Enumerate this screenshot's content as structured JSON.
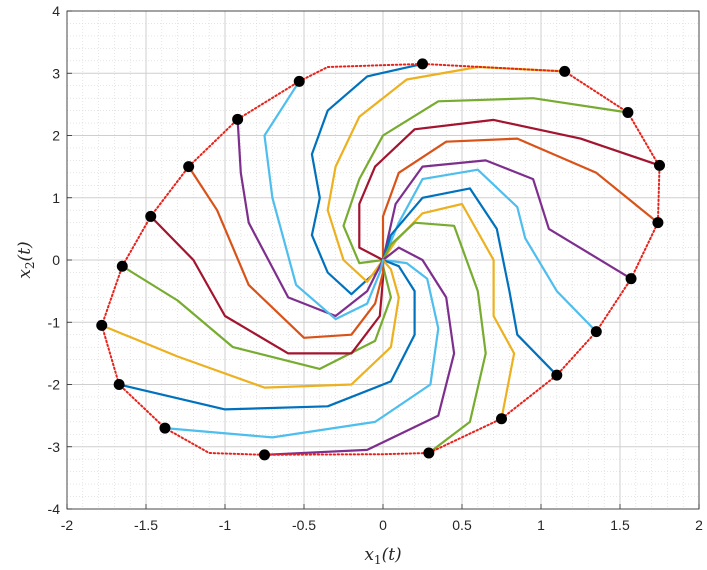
{
  "chart_data": {
    "type": "line",
    "title": "",
    "xlabel": "x_1(t)",
    "ylabel": "x_2(t)",
    "xlim": [
      -2,
      2
    ],
    "ylim": [
      -4,
      4
    ],
    "xticks": [
      -2,
      -1.5,
      -1,
      -0.5,
      0,
      0.5,
      1,
      1.5,
      2
    ],
    "yticks": [
      -4,
      -3,
      -2,
      -1,
      0,
      1,
      2,
      3,
      4
    ],
    "xtick_labels": [
      "-2",
      "-1.5",
      "-1",
      "-0.5",
      "0",
      "0.5",
      "1",
      "1.5",
      "2"
    ],
    "ytick_labels": [
      "-4",
      "-3",
      "-2",
      "-1",
      "0",
      "1",
      "2",
      "3",
      "4"
    ],
    "grid": true,
    "minor_grid": true,
    "legend": "none",
    "boundary": {
      "style": "dotted",
      "color": "#e8231b",
      "points": [
        [
          -1.78,
          -1.05
        ],
        [
          -1.67,
          -2.0
        ],
        [
          -1.38,
          -2.7
        ],
        [
          -1.1,
          -3.1
        ],
        [
          -0.75,
          -3.13
        ],
        [
          0,
          -3.12
        ],
        [
          0.29,
          -3.1
        ],
        [
          0.75,
          -2.55
        ],
        [
          1.1,
          -1.85
        ],
        [
          1.35,
          -1.15
        ],
        [
          1.57,
          -0.3
        ],
        [
          1.74,
          0.6
        ],
        [
          1.75,
          1.5
        ],
        [
          1.55,
          2.37
        ],
        [
          1.15,
          3.03
        ],
        [
          0.25,
          3.15
        ],
        [
          -0.35,
          3.1
        ],
        [
          -0.53,
          2.87
        ],
        [
          -0.92,
          2.26
        ],
        [
          -1.23,
          1.5
        ],
        [
          -1.47,
          0.7
        ],
        [
          -1.65,
          -0.1
        ],
        [
          -1.78,
          -1.05
        ]
      ]
    },
    "start_points": [
      [
        0.25,
        3.15
      ],
      [
        1.15,
        3.03
      ],
      [
        1.55,
        2.37
      ],
      [
        1.75,
        1.52
      ],
      [
        1.74,
        0.6
      ],
      [
        1.57,
        -0.3
      ],
      [
        1.35,
        -1.15
      ],
      [
        1.1,
        -1.85
      ],
      [
        0.75,
        -2.55
      ],
      [
        0.29,
        -3.1
      ],
      [
        -0.75,
        -3.13
      ],
      [
        -1.38,
        -2.7
      ],
      [
        -1.67,
        -2.0
      ],
      [
        -1.78,
        -1.05
      ],
      [
        -1.65,
        -0.1
      ],
      [
        -1.47,
        0.7
      ],
      [
        -1.23,
        1.5
      ],
      [
        -0.92,
        2.26
      ],
      [
        -0.53,
        2.87
      ]
    ],
    "series": [
      {
        "color": "#0072BD",
        "values": [
          [
            0.25,
            3.15
          ],
          [
            -0.1,
            2.95
          ],
          [
            -0.35,
            2.4
          ],
          [
            -0.45,
            1.7
          ],
          [
            -0.4,
            1.0
          ],
          [
            -0.45,
            0.4
          ],
          [
            -0.35,
            -0.2
          ],
          [
            -0.2,
            -0.55
          ],
          [
            -0.05,
            -0.2
          ],
          [
            0,
            0
          ]
        ]
      },
      {
        "color": "#EDB120",
        "values": [
          [
            1.15,
            3.03
          ],
          [
            0.6,
            3.1
          ],
          [
            0.15,
            2.9
          ],
          [
            -0.15,
            2.3
          ],
          [
            -0.3,
            1.5
          ],
          [
            -0.35,
            0.8
          ],
          [
            -0.25,
            0.0
          ],
          [
            -0.1,
            -0.35
          ],
          [
            0,
            0
          ]
        ]
      },
      {
        "color": "#77AC30",
        "values": [
          [
            1.55,
            2.37
          ],
          [
            0.95,
            2.6
          ],
          [
            0.35,
            2.55
          ],
          [
            0.0,
            2.0
          ],
          [
            -0.15,
            1.3
          ],
          [
            -0.25,
            0.55
          ],
          [
            -0.15,
            -0.05
          ],
          [
            0,
            0
          ]
        ]
      },
      {
        "color": "#A2142F",
        "values": [
          [
            1.75,
            1.52
          ],
          [
            1.25,
            1.95
          ],
          [
            0.7,
            2.25
          ],
          [
            0.2,
            2.1
          ],
          [
            -0.05,
            1.5
          ],
          [
            -0.15,
            0.9
          ],
          [
            -0.15,
            0.2
          ],
          [
            0,
            0
          ]
        ]
      },
      {
        "color": "#D95319",
        "values": [
          [
            1.74,
            0.6
          ],
          [
            1.35,
            1.4
          ],
          [
            0.85,
            1.95
          ],
          [
            0.4,
            1.9
          ],
          [
            0.1,
            1.4
          ],
          [
            0.0,
            0.7
          ],
          [
            0,
            0
          ]
        ]
      },
      {
        "color": "#7E2F8E",
        "values": [
          [
            1.57,
            -0.3
          ],
          [
            1.05,
            0.5
          ],
          [
            0.95,
            1.3
          ],
          [
            0.65,
            1.6
          ],
          [
            0.25,
            1.5
          ],
          [
            0.08,
            0.9
          ],
          [
            0,
            0
          ]
        ]
      },
      {
        "color": "#4DBEEE",
        "values": [
          [
            1.35,
            -1.15
          ],
          [
            1.1,
            -0.5
          ],
          [
            0.9,
            0.35
          ],
          [
            0.85,
            0.85
          ],
          [
            0.6,
            1.45
          ],
          [
            0.25,
            1.3
          ],
          [
            0.1,
            0.6
          ],
          [
            0,
            0
          ]
        ]
      },
      {
        "color": "#0072BD",
        "values": [
          [
            1.1,
            -1.85
          ],
          [
            0.85,
            -1.2
          ],
          [
            0.8,
            -0.5
          ],
          [
            0.72,
            0.5
          ],
          [
            0.55,
            1.15
          ],
          [
            0.25,
            1.0
          ],
          [
            0.05,
            0.4
          ],
          [
            0,
            0
          ]
        ]
      },
      {
        "color": "#EDB120",
        "values": [
          [
            0.75,
            -2.55
          ],
          [
            0.83,
            -1.5
          ],
          [
            0.7,
            -0.9
          ],
          [
            0.7,
            0.0
          ],
          [
            0.5,
            0.9
          ],
          [
            0.25,
            0.75
          ],
          [
            0.08,
            0.3
          ],
          [
            0,
            0
          ]
        ]
      },
      {
        "color": "#77AC30",
        "values": [
          [
            0.29,
            -3.1
          ],
          [
            0.55,
            -2.6
          ],
          [
            0.65,
            -1.5
          ],
          [
            0.6,
            -0.5
          ],
          [
            0.45,
            0.55
          ],
          [
            0.2,
            0.6
          ],
          [
            0.05,
            0.25
          ],
          [
            0,
            0
          ]
        ]
      },
      {
        "color": "#7E2F8E",
        "values": [
          [
            -0.75,
            -3.13
          ],
          [
            -0.1,
            -3.05
          ],
          [
            0.35,
            -2.5
          ],
          [
            0.45,
            -1.5
          ],
          [
            0.4,
            -0.6
          ],
          [
            0.25,
            0.0
          ],
          [
            0.1,
            0.2
          ],
          [
            0,
            0
          ]
        ]
      },
      {
        "color": "#4DBEEE",
        "values": [
          [
            -1.38,
            -2.7
          ],
          [
            -0.7,
            -2.85
          ],
          [
            -0.05,
            -2.6
          ],
          [
            0.3,
            -2.0
          ],
          [
            0.35,
            -1.1
          ],
          [
            0.28,
            -0.3
          ],
          [
            0.15,
            -0.05
          ],
          [
            0,
            0
          ]
        ]
      },
      {
        "color": "#0072BD",
        "values": [
          [
            -1.67,
            -2.0
          ],
          [
            -1.0,
            -2.4
          ],
          [
            -0.35,
            -2.35
          ],
          [
            0.05,
            -1.95
          ],
          [
            0.2,
            -1.2
          ],
          [
            0.2,
            -0.5
          ],
          [
            0.1,
            -0.1
          ],
          [
            0,
            0
          ]
        ]
      },
      {
        "color": "#EDB120",
        "values": [
          [
            -1.78,
            -1.05
          ],
          [
            -1.3,
            -1.55
          ],
          [
            -0.75,
            -2.05
          ],
          [
            -0.2,
            -2.0
          ],
          [
            0.05,
            -1.4
          ],
          [
            0.1,
            -0.6
          ],
          [
            0.05,
            -0.15
          ],
          [
            0,
            0
          ]
        ]
      },
      {
        "color": "#77AC30",
        "values": [
          [
            -1.65,
            -0.1
          ],
          [
            -1.3,
            -0.65
          ],
          [
            -0.95,
            -1.4
          ],
          [
            -0.4,
            -1.75
          ],
          [
            -0.05,
            -1.3
          ],
          [
            0.05,
            -0.6
          ],
          [
            0,
            -0.1
          ],
          [
            0,
            0
          ]
        ]
      },
      {
        "color": "#A2142F",
        "values": [
          [
            -1.47,
            0.7
          ],
          [
            -1.2,
            0.0
          ],
          [
            -1.0,
            -0.9
          ],
          [
            -0.6,
            -1.5
          ],
          [
            -0.2,
            -1.5
          ],
          [
            -0.02,
            -0.9
          ],
          [
            0,
            -0.3
          ],
          [
            0,
            0
          ]
        ]
      },
      {
        "color": "#D95319",
        "values": [
          [
            -1.23,
            1.5
          ],
          [
            -1.05,
            0.8
          ],
          [
            -0.85,
            -0.4
          ],
          [
            -0.5,
            -1.25
          ],
          [
            -0.2,
            -1.2
          ],
          [
            -0.05,
            -0.7
          ],
          [
            0,
            -0.2
          ],
          [
            0,
            0
          ]
        ]
      },
      {
        "color": "#7E2F8E",
        "values": [
          [
            -0.92,
            2.26
          ],
          [
            -0.9,
            1.4
          ],
          [
            -0.85,
            0.6
          ],
          [
            -0.6,
            -0.6
          ],
          [
            -0.3,
            -0.9
          ],
          [
            -0.1,
            -0.5
          ],
          [
            -0.02,
            -0.1
          ],
          [
            0,
            0
          ]
        ]
      },
      {
        "color": "#4DBEEE",
        "values": [
          [
            -0.53,
            2.87
          ],
          [
            -0.75,
            2.0
          ],
          [
            -0.7,
            1.0
          ],
          [
            -0.55,
            -0.4
          ],
          [
            -0.3,
            -0.95
          ],
          [
            -0.1,
            -0.7
          ],
          [
            -0.02,
            -0.2
          ],
          [
            0,
            0
          ]
        ]
      }
    ]
  }
}
